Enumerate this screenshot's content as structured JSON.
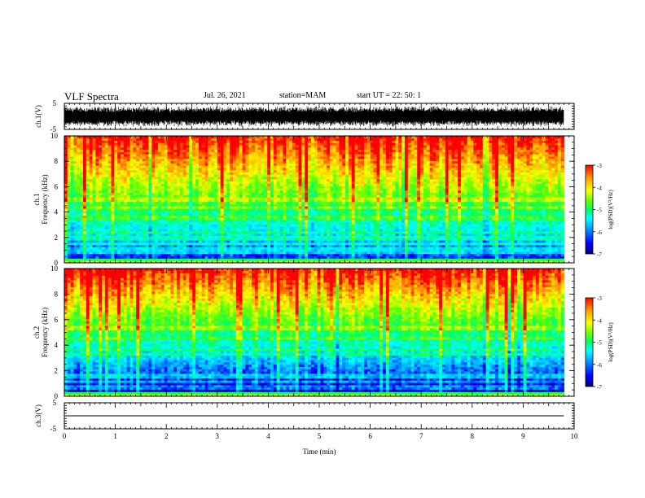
{
  "header": {
    "title": "VLF Spectra",
    "date": "Jul. 26, 2021",
    "station": "station=MAM",
    "start": "start UT =  22: 50: 1"
  },
  "chart_data": [
    {
      "type": "line",
      "panel": "ch1-waveform",
      "ylabel": "ch.1(V)",
      "yticks": [
        "5",
        "-5"
      ],
      "ylim": [
        -5,
        5
      ],
      "note_series": "dense broadband waveform filling roughly -4..+4 V"
    },
    {
      "type": "heatmap",
      "panel": "ch1-spectrogram",
      "ylabel_top": "ch.1",
      "ylabel": "Frequency (kHz)",
      "ylim": [
        0,
        10
      ],
      "yticks": [
        "0",
        "2",
        "4",
        "6",
        "8",
        "10"
      ],
      "colorbar": {
        "label": "log(PSD)(V²/Hz)",
        "ticks": [
          "-3",
          "-4",
          "-5",
          "-6",
          "-7"
        ],
        "range": [
          -7,
          -3
        ]
      }
    },
    {
      "type": "heatmap",
      "panel": "ch2-spectrogram",
      "ylabel_top": "ch.2",
      "ylabel": "Frequency (kHz)",
      "ylim": [
        0,
        10
      ],
      "yticks": [
        "0",
        "2",
        "4",
        "6",
        "8",
        "10"
      ],
      "colorbar": {
        "label": "log(PSD)(V²/Hz)",
        "ticks": [
          "-3",
          "-4",
          "-5",
          "-6",
          "-7"
        ],
        "range": [
          -7,
          -3
        ]
      }
    },
    {
      "type": "line",
      "panel": "ch3-waveform",
      "ylabel": "ch.3(V)",
      "yticks": [
        "5",
        "-5"
      ],
      "ylim": [
        -5,
        5
      ],
      "series": [
        {
          "x": [
            0,
            9.8
          ],
          "y": [
            0,
            0
          ]
        }
      ]
    }
  ],
  "xaxis": {
    "label": "Time (min)",
    "ticks": [
      "0",
      "1",
      "2",
      "3",
      "4",
      "5",
      "6",
      "7",
      "8",
      "9",
      "10"
    ],
    "xlim": [
      0,
      10
    ],
    "data_end": 9.8
  },
  "colors": {
    "colormap": [
      "#000080",
      "#0000ff",
      "#00aaff",
      "#00ffff",
      "#00ff66",
      "#66ff00",
      "#ffff00",
      "#ff9900",
      "#ff0000"
    ]
  }
}
